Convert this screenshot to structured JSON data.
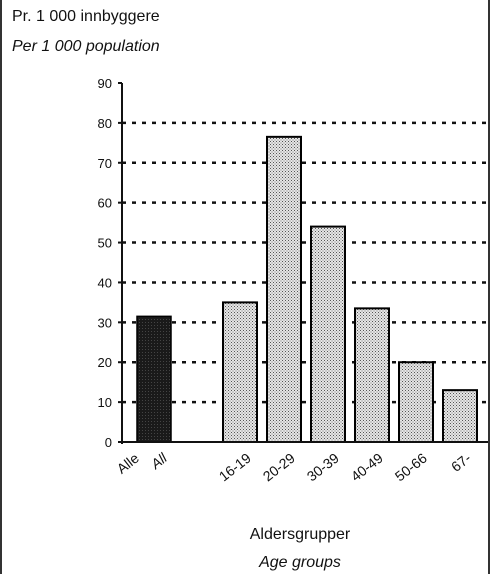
{
  "chart_data": {
    "type": "bar",
    "ylabel_line1": "Pr. 1 000 innbyggere",
    "ylabel_line2": "Per 1 000 population",
    "xlabel_line1": "Aldersgrupper",
    "xlabel_line2": "Age groups",
    "ylim": [
      0,
      90
    ],
    "yticks": [
      0,
      10,
      20,
      30,
      40,
      50,
      60,
      70,
      80,
      90
    ],
    "grid": true,
    "total": {
      "label_no": "Alle",
      "label_en": "All",
      "value": 31.5
    },
    "categories": [
      "16-19",
      "20-29",
      "30-39",
      "40-49",
      "50-66",
      "67-"
    ],
    "values": [
      35,
      76.5,
      54,
      33.5,
      20,
      13
    ],
    "colors": {
      "total_bar": "#1e1e1e",
      "age_bar": "#cfcfcf",
      "axis": "#111111"
    }
  }
}
